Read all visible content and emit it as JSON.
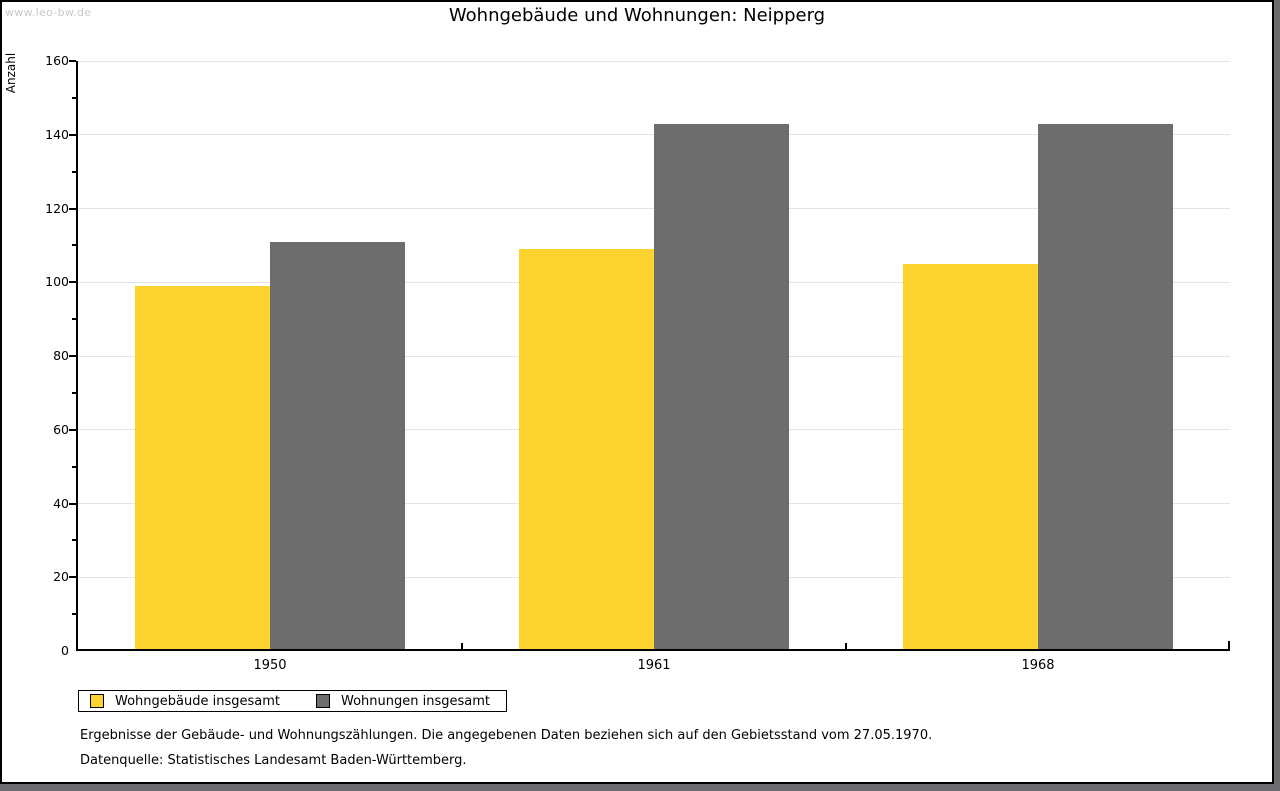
{
  "watermark": "www.leo-bw.de",
  "chart_data": {
    "type": "bar",
    "title": "Wohngebäude und Wohnungen: Neipperg",
    "ylabel": "Anzahl",
    "xlabel": "",
    "categories": [
      "1950",
      "1961",
      "1968"
    ],
    "series": [
      {
        "name": "Wohngebäude insgesamt",
        "color": "#fcd32f",
        "values": [
          99,
          109,
          105
        ]
      },
      {
        "name": "Wohnungen insgesamt",
        "color": "#6d6d6d",
        "values": [
          111,
          143,
          143
        ]
      }
    ],
    "ylim": [
      0,
      160
    ],
    "y_major_step": 20,
    "y_minor_step": 10,
    "grid": true,
    "legend_position": "bottom-left"
  },
  "footnotes": [
    "Ergebnisse der Gebäude- und Wohnungszählungen. Die angegebenen Daten beziehen sich auf den Gebietsstand vom 27.05.1970.",
    "Datenquelle: Statistisches Landesamt Baden-Württemberg."
  ]
}
